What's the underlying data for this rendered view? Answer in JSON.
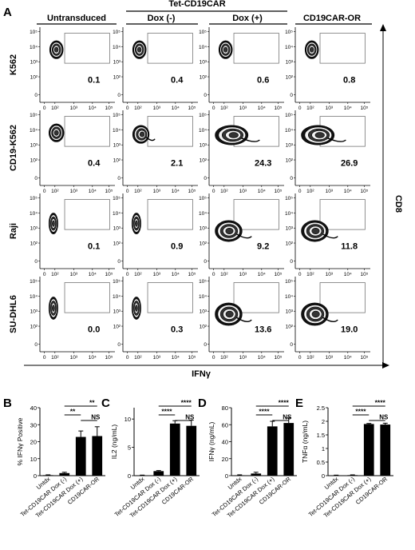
{
  "panel_a": {
    "letter": "A",
    "column_headers": [
      "Untransduced",
      "Dox (-)",
      "Dox (+)",
      "CD19CAR-OR"
    ],
    "group_header": "Tet-CD19CAR",
    "row_labels": [
      "K562",
      "CD19-K562",
      "Raji",
      "SU-DHL6"
    ],
    "x_axis_label": "IFNγ",
    "y_axis_label": "CD8",
    "tick_labels": [
      "0",
      "10²",
      "10³",
      "10⁴",
      "10⁵"
    ]
  },
  "chart_data": [
    {
      "type": "heatmap",
      "panel": "A",
      "rows": [
        "K562",
        "CD19-K562",
        "Raji",
        "SU-DHL6"
      ],
      "columns": [
        "Untransduced",
        "Dox (-)",
        "Dox (+)",
        "CD19CAR-OR"
      ],
      "gate_percentages": [
        [
          "0.1",
          "0.4",
          "0.6",
          "0.8"
        ],
        [
          "0.4",
          "2.1",
          "24.3",
          "26.9"
        ],
        [
          "0.1",
          "0.9",
          "9.2",
          "11.8"
        ],
        [
          "0.0",
          "0.3",
          "13.6",
          "19.0"
        ]
      ],
      "xlabel": "IFNγ",
      "ylabel": "CD8"
    },
    {
      "type": "bar",
      "panel": "B",
      "categories": [
        "Untdx",
        "Tet-CD19CAR Dox (-)",
        "Tet-CD19CAR Dox (+)",
        "CD19CAR-OR"
      ],
      "values": [
        0.3,
        1.5,
        22.8,
        23.3
      ],
      "errors": [
        0.2,
        0.5,
        3.5,
        5.5
      ],
      "ylabel": "% IFNγ Positive",
      "ylim": [
        0,
        40
      ],
      "yticks": [
        0,
        10,
        20,
        30,
        40
      ],
      "significance": [
        {
          "from": 1,
          "to": 2,
          "label": "**"
        },
        {
          "from": 1,
          "to": 3,
          "label": "**"
        },
        {
          "from": 2,
          "to": 3,
          "label": "NS"
        }
      ]
    },
    {
      "type": "bar",
      "panel": "C",
      "categories": [
        "Untdx",
        "Tet-CD19CAR Dox (-)",
        "Tet-CD19CAR Dox (+)",
        "CD19CAR-OR"
      ],
      "values": [
        0.05,
        0.8,
        9.2,
        8.8
      ],
      "errors": [
        0.05,
        0.1,
        0.5,
        1.0
      ],
      "ylabel": "IL2 (ng/mL)",
      "ylim": [
        0,
        12
      ],
      "yticks": [
        0,
        5,
        10
      ],
      "significance": [
        {
          "from": 1,
          "to": 2,
          "label": "****"
        },
        {
          "from": 1,
          "to": 3,
          "label": "****"
        },
        {
          "from": 2,
          "to": 3,
          "label": "NS"
        }
      ]
    },
    {
      "type": "bar",
      "panel": "D",
      "categories": [
        "Untdx",
        "Tet-CD19CAR Dox (-)",
        "Tet-CD19CAR Dox (+)",
        "CD19CAR-OR"
      ],
      "values": [
        0.5,
        2.5,
        58.0,
        62.0
      ],
      "errors": [
        0.5,
        1.5,
        6.0,
        6.0
      ],
      "ylabel": "IFNγ (ng/mL)",
      "ylim": [
        0,
        80
      ],
      "yticks": [
        0,
        20,
        40,
        60,
        80
      ],
      "significance": [
        {
          "from": 1,
          "to": 2,
          "label": "****"
        },
        {
          "from": 1,
          "to": 3,
          "label": "****"
        },
        {
          "from": 2,
          "to": 3,
          "label": "NS"
        }
      ]
    },
    {
      "type": "bar",
      "panel": "E",
      "categories": [
        "Untdx",
        "Tet-CD19CAR Dox (-)",
        "Tet-CD19CAR Dox (+)",
        "CD19CAR-OR"
      ],
      "values": [
        0.01,
        0.02,
        1.9,
        1.88
      ],
      "errors": [
        0.01,
        0.01,
        0.02,
        0.05
      ],
      "ylabel": "TNFα (ng/mL)",
      "ylim": [
        0,
        2.5
      ],
      "yticks": [
        0.0,
        0.5,
        1.0,
        1.5,
        2.0,
        2.5
      ],
      "significance": [
        {
          "from": 1,
          "to": 2,
          "label": "****"
        },
        {
          "from": 1,
          "to": 3,
          "label": "****"
        },
        {
          "from": 2,
          "to": 3,
          "label": "NS"
        }
      ]
    }
  ]
}
